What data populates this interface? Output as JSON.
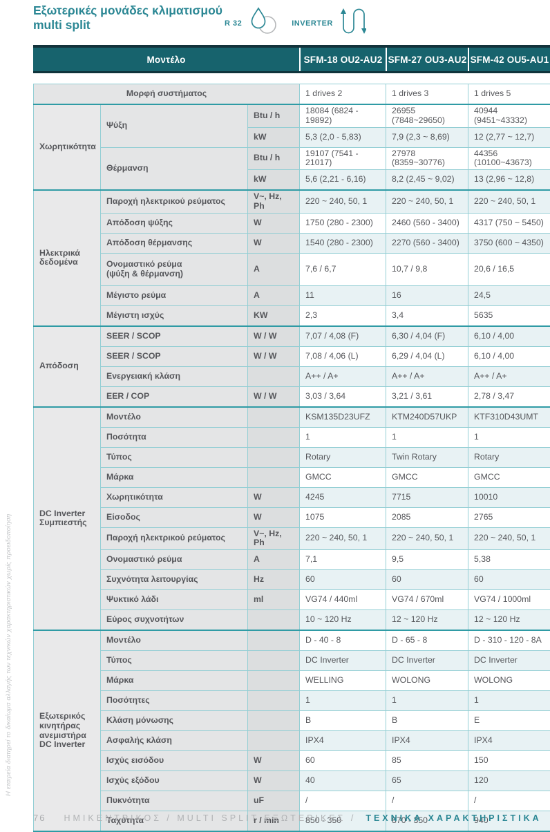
{
  "header": {
    "title_line1": "Εξωτερικές μονάδες κλιματισμού",
    "title_line2": "multi split",
    "r32_label": "R 32",
    "inverter_label": "INVERTER"
  },
  "colors": {
    "teal_dark": "#17636d",
    "teal_accent": "#2b8794",
    "section_border": "#2f9ba5",
    "pale_row": "#e8f2f4",
    "gray_cell": "#e4e5e6"
  },
  "model_header": {
    "label": "Μοντέλο",
    "models": [
      "SFM-18 OU2-AU2",
      "SFM-27 OU3-AU2",
      "SFM-42 OU5-AU1"
    ]
  },
  "system_row": {
    "label": "Μορφή συστήματος",
    "values": [
      "1 drives 2",
      "1 drives 3",
      "1 drives 5"
    ]
  },
  "sections": [
    {
      "group": "Χωρητικότητα",
      "first_shade": "white",
      "rows": [
        {
          "param": "Ψύξη",
          "param_rowspan": 2,
          "unit": "Btu / h",
          "values": [
            "18084 (6824 - 19892)",
            "26955 (7848~29650)",
            "40944 (9451~43332)"
          ]
        },
        {
          "unit": "kW",
          "values": [
            "5,3 (2,0 - 5,83)",
            "7,9 (2,3 ~ 8,69)",
            "12 (2,77 ~ 12,7)"
          ]
        },
        {
          "param": "Θέρμανση",
          "param_rowspan": 2,
          "unit": "Btu / h",
          "values": [
            "19107 (7541 - 21017)",
            "27978 (8359~30776)",
            "44356 (10100~43673)"
          ]
        },
        {
          "unit": "kW",
          "values": [
            "5,6 (2,21 - 6,16)",
            "8,2 (2,45 ~ 9,02)",
            "13 (2,96 ~ 12,8)"
          ]
        }
      ]
    },
    {
      "group": "Ηλεκτρικά\nδεδομένα",
      "first_shade": "pale",
      "rows": [
        {
          "param": "Παροχή ηλεκτρικού ρεύματος",
          "unit": "V~, Hz, Ph",
          "values": [
            "220 ~ 240, 50, 1",
            "220 ~ 240, 50, 1",
            "220 ~ 240, 50, 1"
          ]
        },
        {
          "param": "Απόδοση ψύξης",
          "unit": "W",
          "values": [
            "1750 (280 - 2300)",
            "2460 (560 - 3400)",
            "4317 (750 ~ 5450)"
          ]
        },
        {
          "param": "Απόδοση θέρμανσης",
          "unit": "W",
          "values": [
            "1540 (280 - 2300)",
            "2270 (560 - 3400)",
            "3750 (600 ~ 4350)"
          ]
        },
        {
          "param": "Ονομαστικό ρεύμα\n(ψύξη & θέρμανση)",
          "unit": "A",
          "tall": true,
          "values": [
            "7,6 / 6,7",
            "10,7 / 9,8",
            "20,6 / 16,5"
          ]
        },
        {
          "param": "Μέγιστο ρεύμα",
          "unit": "A",
          "values": [
            "11",
            "16",
            "24,5"
          ]
        },
        {
          "param": "Μέγιστη ισχύς",
          "unit": "KW",
          "values": [
            "2,3",
            "3,4",
            "5635"
          ]
        }
      ]
    },
    {
      "group": "Απόδοση",
      "first_shade": "pale",
      "rows": [
        {
          "param": "SEER / SCOP",
          "unit": "W / W",
          "values": [
            "7,07 / 4,08 (F)",
            "6,30 / 4,04 (F)",
            "6,10 / 4,00"
          ]
        },
        {
          "param": "SEER / SCOP",
          "unit": "W / W",
          "values": [
            "7,08 / 4,06 (L)",
            "6,29 / 4,04 (L)",
            "6,10 / 4,00"
          ]
        },
        {
          "param": "Ενεργειακή κλάση",
          "unit": "",
          "values": [
            "A++ / A+",
            "A++ / A+",
            "A++ / A+"
          ]
        },
        {
          "param": "EER / COP",
          "unit": "W / W",
          "values": [
            "3,03 / 3,64",
            "3,21 / 3,61",
            "2,78 / 3,47"
          ]
        }
      ]
    },
    {
      "group": "DC Inverter\nΣυμπιεστής",
      "first_shade": "pale",
      "rows": [
        {
          "param": "Μοντέλο",
          "unit": "",
          "values": [
            "KSM135D23UFZ",
            "KTM240D57UKP",
            "KTF310D43UMT"
          ]
        },
        {
          "param": "Ποσότητα",
          "unit": "",
          "values": [
            "1",
            "1",
            "1"
          ]
        },
        {
          "param": "Τύπος",
          "unit": "",
          "values": [
            "Rotary",
            "Twin Rotary",
            "Rotary"
          ]
        },
        {
          "param": "Μάρκα",
          "unit": "",
          "values": [
            "GMCC",
            "GMCC",
            "GMCC"
          ]
        },
        {
          "param": "Χωρητικότητα",
          "unit": "W",
          "values": [
            "4245",
            "7715",
            "10010"
          ]
        },
        {
          "param": "Είσοδος",
          "unit": "W",
          "values": [
            "1075",
            "2085",
            "2765"
          ]
        },
        {
          "param": "Παροχή ηλεκτρικού ρεύματος",
          "unit": "V~, Hz, Ph",
          "values": [
            "220 ~ 240, 50, 1",
            "220 ~ 240, 50, 1",
            "220 ~ 240, 50, 1"
          ]
        },
        {
          "param": "Ονομαστικό ρεύμα",
          "unit": "A",
          "values": [
            "7,1",
            "9,5",
            "5,38"
          ]
        },
        {
          "param": "Συχνότητα λειτουργίας",
          "unit": "Hz",
          "values": [
            "60",
            "60",
            "60"
          ]
        },
        {
          "param": "Ψυκτικό λάδι",
          "unit": "ml",
          "values": [
            "VG74 / 440ml",
            "VG74 / 670ml",
            "VG74 / 1000ml"
          ]
        },
        {
          "param": "Εύρος συχνοτήτων",
          "unit": "",
          "values": [
            "10 ~ 120 Hz",
            "12 ~ 120 Hz",
            "12 ~ 120 Hz"
          ]
        }
      ]
    },
    {
      "group": "Εξωτερικός\nκινητήρας\nανεμιστήρα\nDC Inverter",
      "first_shade": "white",
      "rows": [
        {
          "param": "Μοντέλο",
          "unit": "",
          "values": [
            "D - 40 - 8",
            "D - 65 - 8",
            "D - 310 - 120 - 8A"
          ]
        },
        {
          "param": "Τύπος",
          "unit": "",
          "values": [
            "DC Inverter",
            "DC Inverter",
            "DC Inverter"
          ]
        },
        {
          "param": "Μάρκα",
          "unit": "",
          "values": [
            "WELLING",
            "WOLONG",
            "WOLONG"
          ]
        },
        {
          "param": "Ποσότητες",
          "unit": "",
          "values": [
            "1",
            "1",
            "1"
          ]
        },
        {
          "param": "Κλάση μόνωσης",
          "unit": "",
          "values": [
            "B",
            "B",
            "E"
          ]
        },
        {
          "param": "Ασφαλής κλάση",
          "unit": "",
          "values": [
            "IPX4",
            "IPX4",
            "IPX4"
          ]
        },
        {
          "param": "Ισχύς εισόδου",
          "unit": "W",
          "values": [
            "60",
            "85",
            "150"
          ]
        },
        {
          "param": "Ισχύς εξόδου",
          "unit": "W",
          "values": [
            "40",
            "65",
            "120"
          ]
        },
        {
          "param": "Πυκνότητα",
          "unit": "uF",
          "values": [
            "/",
            "/",
            "/"
          ]
        },
        {
          "param": "Ταχύτητα",
          "unit": "r / min",
          "values": [
            "850 - 350",
            "870 - 350",
            "940"
          ]
        }
      ]
    }
  ],
  "side_note": "Η εταιρεία διατηρεί το δικαίωμα αλλαγής των τεχνικών χαρακτηριστικών χωρίς προειδοποίηση",
  "footer": {
    "page_number": "76",
    "breadcrumb": "ΗΜΙΚΕΝΤΡΙΚΟΣ / MULTI SPLIT ΕΞΩΤΕΡΙΚΕΣ /",
    "breadcrumb_active": "ΤΕΧΝΙΚΑ ΧΑΡΑΚΤΗΡΙΣΤΙΚΑ"
  }
}
